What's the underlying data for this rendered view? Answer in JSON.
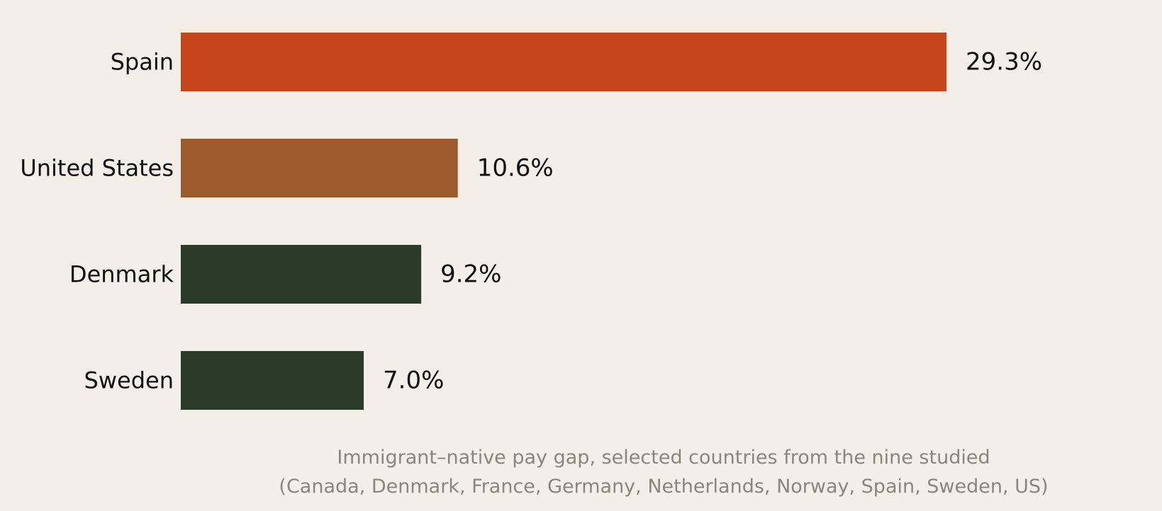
{
  "chart_data": {
    "type": "bar",
    "orientation": "horizontal",
    "categories": [
      "Spain",
      "United States",
      "Denmark",
      "Sweden"
    ],
    "values": [
      29.3,
      10.6,
      9.2,
      7.0
    ],
    "value_labels": [
      "29.3%",
      "10.6%",
      "9.2%",
      "7.0%"
    ],
    "colors": [
      "#c8441b",
      "#9e5a2c",
      "#2a3c29",
      "#2a3c29"
    ],
    "unit": "%",
    "xlim": [
      0,
      29.3
    ],
    "grid": false,
    "legend": "none",
    "caption_lines": [
      "Immigrant–native pay gap, selected countries from the nine studied",
      "(Canada, Denmark, France, Germany, Netherlands, Norway, Spain, Sweden, US)"
    ]
  }
}
